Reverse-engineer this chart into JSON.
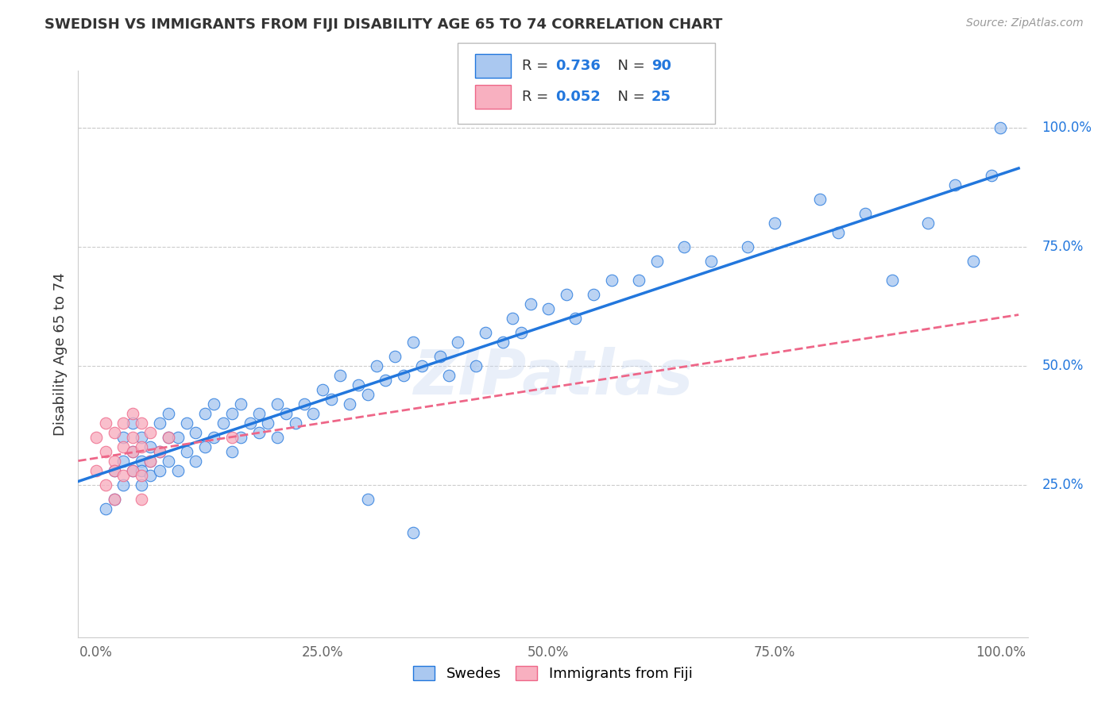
{
  "title": "SWEDISH VS IMMIGRANTS FROM FIJI DISABILITY AGE 65 TO 74 CORRELATION CHART",
  "ylabel": "Disability Age 65 to 74",
  "source_text": "Source: ZipAtlas.com",
  "x_ticks": [
    0.0,
    0.25,
    0.5,
    0.75,
    1.0
  ],
  "x_tick_labels": [
    "0.0%",
    "25.0%",
    "50.0%",
    "75.0%",
    "100.0%"
  ],
  "y_ticks": [
    0.25,
    0.5,
    0.75,
    1.0
  ],
  "y_tick_labels": [
    "25.0%",
    "50.0%",
    "75.0%",
    "100.0%"
  ],
  "swedes_color": "#aac8f0",
  "fiji_color": "#f8b0c0",
  "blue_line_color": "#2277dd",
  "pink_line_color": "#ee6688",
  "watermark": "ZIPatlas",
  "legend_label_swedes": "Swedes",
  "legend_label_fiji": "Immigrants from Fiji",
  "swedes_x": [
    0.01,
    0.02,
    0.02,
    0.03,
    0.03,
    0.03,
    0.04,
    0.04,
    0.04,
    0.05,
    0.05,
    0.05,
    0.05,
    0.06,
    0.06,
    0.06,
    0.07,
    0.07,
    0.07,
    0.08,
    0.08,
    0.08,
    0.09,
    0.09,
    0.1,
    0.1,
    0.11,
    0.11,
    0.12,
    0.12,
    0.13,
    0.13,
    0.14,
    0.15,
    0.15,
    0.16,
    0.16,
    0.17,
    0.18,
    0.18,
    0.19,
    0.2,
    0.2,
    0.21,
    0.22,
    0.23,
    0.24,
    0.25,
    0.26,
    0.27,
    0.28,
    0.29,
    0.3,
    0.31,
    0.32,
    0.33,
    0.34,
    0.35,
    0.36,
    0.38,
    0.39,
    0.4,
    0.42,
    0.43,
    0.45,
    0.46,
    0.47,
    0.48,
    0.5,
    0.52,
    0.53,
    0.55,
    0.57,
    0.6,
    0.62,
    0.65,
    0.68,
    0.72,
    0.75,
    0.8,
    0.82,
    0.85,
    0.88,
    0.92,
    0.95,
    0.97,
    0.99,
    1.0,
    0.3,
    0.35
  ],
  "swedes_y": [
    0.2,
    0.22,
    0.28,
    0.25,
    0.3,
    0.35,
    0.28,
    0.32,
    0.38,
    0.25,
    0.3,
    0.28,
    0.35,
    0.27,
    0.33,
    0.3,
    0.32,
    0.38,
    0.28,
    0.35,
    0.3,
    0.4,
    0.35,
    0.28,
    0.32,
    0.38,
    0.3,
    0.36,
    0.33,
    0.4,
    0.35,
    0.42,
    0.38,
    0.32,
    0.4,
    0.35,
    0.42,
    0.38,
    0.4,
    0.36,
    0.38,
    0.35,
    0.42,
    0.4,
    0.38,
    0.42,
    0.4,
    0.45,
    0.43,
    0.48,
    0.42,
    0.46,
    0.44,
    0.5,
    0.47,
    0.52,
    0.48,
    0.55,
    0.5,
    0.52,
    0.48,
    0.55,
    0.5,
    0.57,
    0.55,
    0.6,
    0.57,
    0.63,
    0.62,
    0.65,
    0.6,
    0.65,
    0.68,
    0.68,
    0.72,
    0.75,
    0.72,
    0.75,
    0.8,
    0.85,
    0.78,
    0.82,
    0.68,
    0.8,
    0.88,
    0.72,
    0.9,
    1.0,
    0.22,
    0.15
  ],
  "fiji_x": [
    0.0,
    0.0,
    0.01,
    0.01,
    0.01,
    0.02,
    0.02,
    0.02,
    0.02,
    0.03,
    0.03,
    0.03,
    0.04,
    0.04,
    0.04,
    0.04,
    0.05,
    0.05,
    0.05,
    0.05,
    0.06,
    0.06,
    0.07,
    0.08,
    0.15
  ],
  "fiji_y": [
    0.28,
    0.35,
    0.32,
    0.38,
    0.25,
    0.3,
    0.36,
    0.28,
    0.22,
    0.33,
    0.38,
    0.27,
    0.32,
    0.4,
    0.28,
    0.35,
    0.33,
    0.27,
    0.22,
    0.38,
    0.3,
    0.36,
    0.32,
    0.35,
    0.35
  ]
}
